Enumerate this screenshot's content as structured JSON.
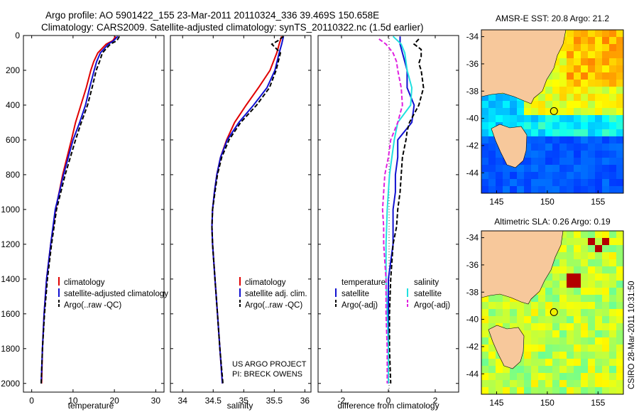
{
  "header": {
    "line1": "Argo profile: AO 5901422_155 23-Mar-2011 20110324_336 39.469S 150.658E",
    "line2": "Climatology: CARS2009. Satellite-adjusted climatology: synTS_20110322.nc (1.5d earlier)"
  },
  "footer": {
    "credit_line1": "US ARGO PROJECT",
    "credit_line2": "PI: BRECK OWENS",
    "stamp": "CSIRO 28-Mar-2011 10:31:50"
  },
  "colors": {
    "climatology": "#e00000",
    "satellite": "#1010d0",
    "argo": "#000000",
    "salinity_satellite": "#20e0e0",
    "salinity_argo": "#e020e0",
    "land": "#f7c89b"
  },
  "chart_data": [
    {
      "type": "line",
      "xlabel": "temperature",
      "ylabel": "",
      "xlim": [
        -2,
        32
      ],
      "ylim": [
        0,
        2050
      ],
      "y_reversed": true,
      "xticks": [
        0,
        10,
        20,
        30
      ],
      "yticks": [
        0,
        200,
        400,
        600,
        800,
        1000,
        1200,
        1400,
        1600,
        1800,
        2000
      ],
      "legend": {
        "position": "lower-right",
        "entries": [
          "climatology",
          "satellite-adjusted climatology",
          "Argo(..raw -QC)"
        ]
      },
      "series": [
        {
          "name": "climatology",
          "depth": [
            5,
            30,
            50,
            100,
            150,
            200,
            300,
            400,
            500,
            600,
            800,
            1000,
            1200,
            1400,
            1600,
            1800,
            2000
          ],
          "values": [
            20.3,
            19.6,
            18.0,
            16.0,
            15.0,
            14.3,
            13.2,
            11.9,
            10.6,
            9.6,
            7.5,
            5.8,
            4.6,
            3.6,
            3.0,
            2.6,
            2.4
          ]
        },
        {
          "name": "satellite-adjusted climatology",
          "depth": [
            5,
            30,
            50,
            100,
            150,
            200,
            300,
            400,
            500,
            600,
            800,
            1000,
            1200,
            1400,
            1600,
            1800,
            2000
          ],
          "values": [
            20.8,
            19.8,
            18.5,
            16.6,
            15.7,
            15.1,
            14.0,
            13.0,
            11.6,
            10.0,
            7.7,
            5.7,
            4.6,
            3.6,
            3.0,
            2.6,
            2.3
          ]
        },
        {
          "name": "Argo(..raw -QC)",
          "depth": [
            5,
            30,
            50,
            100,
            150,
            200,
            300,
            400,
            500,
            600,
            800,
            1000,
            1200,
            1400,
            1600,
            1800,
            2000
          ],
          "values": [
            21.2,
            20.6,
            19.0,
            17.1,
            16.4,
            15.6,
            14.6,
            13.5,
            12.0,
            10.6,
            8.1,
            6.0,
            4.8,
            3.8,
            3.1,
            2.6,
            2.3
          ]
        }
      ]
    },
    {
      "type": "line",
      "xlabel": "salinity",
      "ylabel": "",
      "xlim": [
        33.8,
        36.1
      ],
      "ylim": [
        0,
        2050
      ],
      "y_reversed": true,
      "xticks": [
        34,
        34.5,
        35,
        35.5,
        36
      ],
      "legend": {
        "position": "lower-right",
        "entries": [
          "climatology",
          "satellite adj. clim.",
          "Argo(..raw -QC)"
        ]
      },
      "series": [
        {
          "name": "climatology",
          "depth": [
            5,
            50,
            100,
            200,
            300,
            400,
            500,
            600,
            700,
            800,
            900,
            1000,
            1100,
            1200,
            1400,
            1600,
            1800,
            2000
          ],
          "values": [
            35.62,
            35.58,
            35.54,
            35.43,
            35.24,
            35.04,
            34.85,
            34.72,
            34.62,
            34.56,
            34.52,
            34.49,
            34.48,
            34.49,
            34.53,
            34.57,
            34.61,
            34.65
          ]
        },
        {
          "name": "satellite adj. clim.",
          "depth": [
            5,
            50,
            100,
            200,
            300,
            400,
            500,
            600,
            700,
            800,
            900,
            1000,
            1100,
            1200,
            1400,
            1600,
            1800,
            2000
          ],
          "values": [
            35.65,
            35.62,
            35.58,
            35.51,
            35.38,
            35.16,
            34.92,
            34.73,
            34.62,
            34.56,
            34.52,
            34.49,
            34.48,
            34.49,
            34.53,
            34.57,
            34.61,
            34.65
          ]
        },
        {
          "name": "Argo(..raw -QC)",
          "depth": [
            5,
            30,
            50,
            100,
            200,
            300,
            400,
            500,
            600,
            700,
            800,
            900,
            1000,
            1100,
            1200,
            1400,
            1600,
            1800,
            2000
          ],
          "values": [
            35.65,
            35.56,
            35.46,
            35.6,
            35.53,
            35.42,
            35.21,
            34.95,
            34.76,
            34.64,
            34.57,
            34.53,
            34.49,
            34.48,
            34.49,
            34.53,
            34.57,
            34.61,
            34.66
          ]
        }
      ],
      "annotations": [
        "US ARGO PROJECT",
        "PI: BRECK OWENS"
      ]
    },
    {
      "type": "line",
      "xlabel": "difference from climatology",
      "ylabel": "",
      "xlim": [
        -3,
        3
      ],
      "ylim": [
        0,
        2050
      ],
      "y_reversed": true,
      "xticks": [
        -2,
        0,
        2
      ],
      "legend": {
        "position": "lower",
        "groups": [
          {
            "title": "temperature",
            "entries": [
              "satellite",
              "Argo(-adj)"
            ]
          },
          {
            "title": "salinity",
            "entries": [
              "satellite",
              "Argo(-adj)"
            ]
          }
        ]
      },
      "series": [
        {
          "name": "temperature satellite",
          "depth": [
            5,
            50,
            100,
            200,
            300,
            400,
            500,
            600,
            700,
            800,
            900,
            1000,
            1100,
            1200,
            1300,
            1400,
            1600,
            1800,
            2000
          ],
          "values": [
            0.5,
            0.5,
            0.6,
            0.8,
            0.8,
            1.1,
            1.0,
            0.4,
            0.4,
            0.3,
            0.3,
            0.2,
            0.2,
            0.2,
            0.1,
            0.0,
            0.0,
            0.0,
            0.0
          ]
        },
        {
          "name": "temperature Argo(-adj)",
          "depth": [
            20,
            50,
            80,
            120,
            160,
            200,
            300,
            400,
            500,
            550,
            600,
            700,
            800,
            900,
            1000,
            1100,
            1200,
            1300,
            1400,
            1600,
            1800,
            2000
          ],
          "values": [
            1.3,
            1.1,
            1.4,
            1.4,
            1.3,
            1.4,
            1.5,
            1.3,
            0.9,
            0.8,
            0.75,
            0.6,
            0.55,
            0.5,
            0.4,
            0.35,
            0.2,
            0.15,
            0.1,
            0.05,
            0.05,
            0.1
          ]
        },
        {
          "name": "salinity satellite",
          "depth": [
            5,
            50,
            100,
            200,
            300,
            400,
            500,
            600,
            800,
            1000,
            1200,
            1400,
            1600,
            1800,
            2000
          ],
          "values": [
            0.2,
            0.55,
            0.7,
            0.8,
            1.0,
            0.95,
            0.4,
            0.25,
            0.05,
            -0.05,
            -0.1,
            -0.1,
            -0.05,
            0.0,
            0.0
          ]
        },
        {
          "name": "salinity Argo(-adj)",
          "depth": [
            20,
            50,
            100,
            150,
            200,
            300,
            400,
            500,
            600,
            700,
            800,
            900,
            1000,
            1100,
            1200,
            1400,
            1600,
            1800,
            2000
          ],
          "values": [
            -0.4,
            -0.1,
            0.2,
            0.35,
            0.4,
            0.55,
            0.6,
            0.4,
            0.1,
            0.0,
            -0.15,
            -0.2,
            -0.25,
            -0.2,
            -0.2,
            -0.1,
            -0.1,
            -0.05,
            -0.05
          ]
        }
      ]
    },
    {
      "type": "heatmap",
      "title": "AMSR-E SST: 20.8 Argo: 21.2",
      "xlim": [
        143.5,
        157.5
      ],
      "ylim": [
        -45.5,
        -33.5
      ],
      "xticks": [
        145,
        150,
        155
      ],
      "yticks": [
        -34,
        -36,
        -38,
        -40,
        -42,
        -44
      ],
      "argo_position": {
        "lon": 150.658,
        "lat": -39.469
      }
    },
    {
      "type": "heatmap",
      "title": "Altimetric SLA: 0.26 Argo: 0.19",
      "xlim": [
        143.5,
        157.5
      ],
      "ylim": [
        -45.5,
        -33.5
      ],
      "xticks": [
        145,
        150,
        155
      ],
      "yticks": [
        -34,
        -36,
        -38,
        -40,
        -42,
        -44
      ],
      "argo_position": {
        "lon": 150.658,
        "lat": -39.469
      }
    }
  ]
}
